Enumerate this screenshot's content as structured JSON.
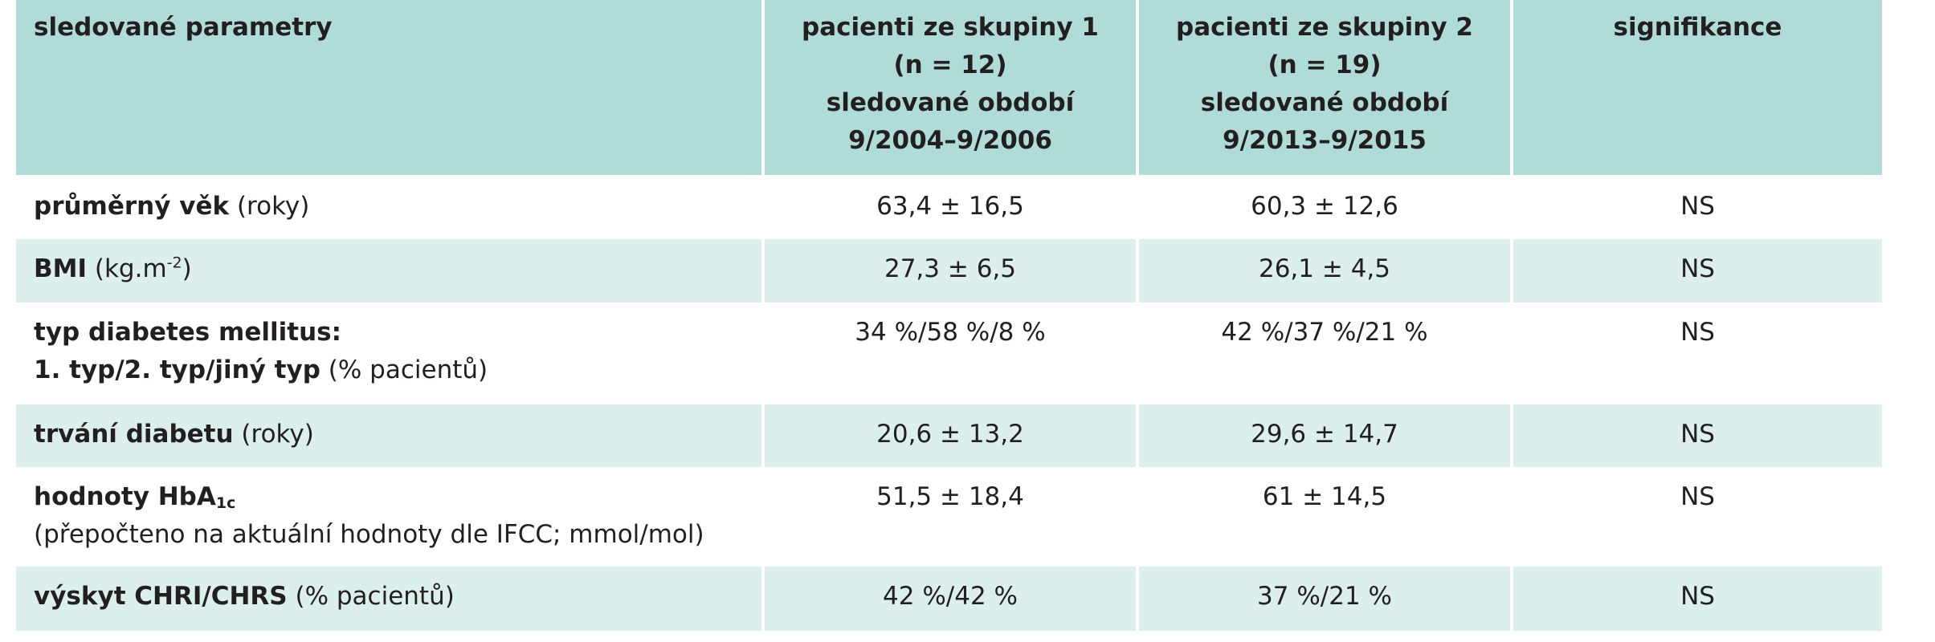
{
  "header": {
    "col1": "sledované parametry",
    "col2": [
      "pacienti ze skupiny 1",
      "(n = 12)",
      "sledované období",
      "9/2004–9/2006"
    ],
    "col3": [
      "pacienti ze skupiny 2",
      "(n = 19)",
      "sledované období",
      "9/2013–9/2015"
    ],
    "col4": "signifikance"
  },
  "rows": [
    {
      "label_bold": "průměrný věk",
      "label_rest": " (roky)",
      "g1": "63,4 ± 16,5",
      "g2": "60,3 ± 12,6",
      "sig": "NS"
    },
    {
      "label_bold": "BMI",
      "label_rest": " (kg.m",
      "label_sup": "-2",
      "label_after": ")",
      "g1": "27,3 ± 6,5",
      "g2": "26,1 ± 4,5",
      "sig": "NS"
    },
    {
      "label_bold": "typ diabetes mellitus:",
      "label_line2_bold": "1. typ/2. typ/jiný typ",
      "label_line2_rest": " (% pacientů)",
      "g1": "34 %/58 %/8 %",
      "g2": "42 %/37 %/21 %",
      "sig": "NS"
    },
    {
      "label_bold": "trvání diabetu",
      "label_rest": " (roky)",
      "g1": "20,6 ± 13,2",
      "g2": "29,6 ± 14,7",
      "sig": "NS"
    },
    {
      "label_bold": "hodnoty HbA",
      "label_sub": "1c",
      "label_line2_rest": "(přepočteno na aktuální hodnoty dle IFCC; mmol/mol)",
      "g1": "51,5 ± 18,4",
      "g2": "61 ± 14,5",
      "sig": "NS"
    },
    {
      "label_bold": "výskyt CHRI/CHRS",
      "label_rest": " (% pacientů)",
      "g1": "42 %/42 %",
      "g2": "37 %/21 %",
      "sig": "NS"
    }
  ]
}
